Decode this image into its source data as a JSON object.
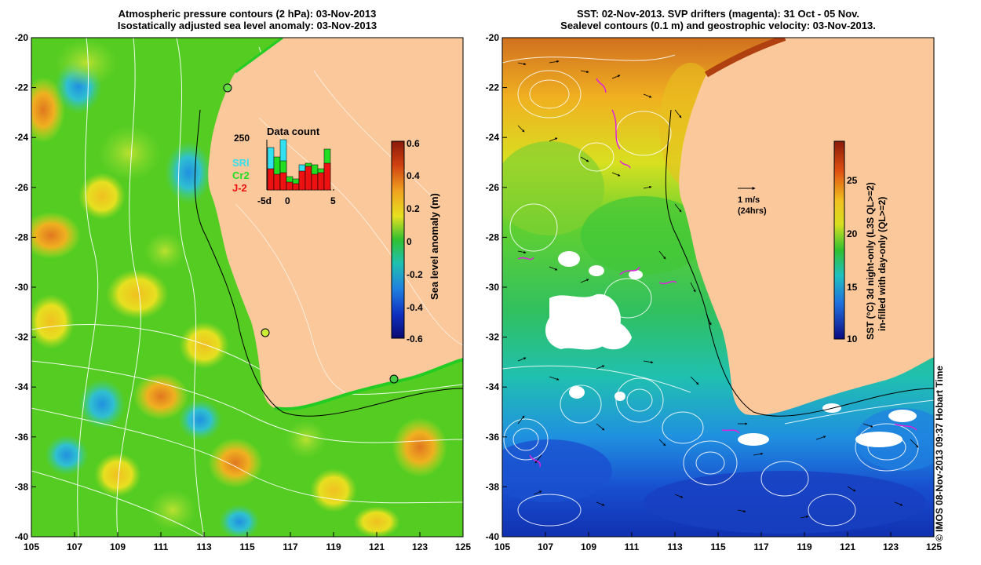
{
  "left_panel": {
    "title_line1": "Atmospheric pressure contours (2 hPa): 03-Nov-2013",
    "title_line2": "Isostatically adjusted sea level anomaly: 03-Nov-2013",
    "colorbar": {
      "label": "Sea level anomaly (m)",
      "ticks": [
        "0.6",
        "0.4",
        "0.2",
        "0",
        "-0.2",
        "-0.4",
        "-0.6"
      ]
    },
    "inset": {
      "title": "Data count",
      "ymax_label": "250",
      "xticks": [
        "-5d",
        "0",
        "5"
      ],
      "legend": [
        {
          "label": "SRl",
          "color": "#33e0f0"
        },
        {
          "label": "Cr2",
          "color": "#22dd22"
        },
        {
          "label": "J-2",
          "color": "#ee1111"
        }
      ]
    }
  },
  "right_panel": {
    "title_line1": "SST: 02-Nov-2013. SVP drifters (magenta): 31 Oct - 05 Nov.",
    "title_line2": "Sealevel contours (0.1 m) and geostrophic velocity: 03-Nov-2013.",
    "scale_arrow_label": "1 m/s",
    "scale_arrow_sublabel": "(24hrs)",
    "colorbar": {
      "label_line1": "SST (°C) 3d night-only (L3S QL>=2)",
      "label_line2": "in-filled with day-only (QL>=2)",
      "ticks": [
        "25",
        "20",
        "15",
        "10"
      ]
    }
  },
  "axes": {
    "x_ticks": [
      "105",
      "107",
      "109",
      "111",
      "113",
      "115",
      "117",
      "119",
      "121",
      "123",
      "125"
    ],
    "y_ticks": [
      "-20",
      "-22",
      "-24",
      "-26",
      "-28",
      "-30",
      "-32",
      "-34",
      "-36",
      "-38",
      "-40"
    ]
  },
  "credit": "© IMOS 08-Nov-2013 09:37 Hobart Time",
  "colors": {
    "land": "#fac89a",
    "ocean_base_left": "#55cc22",
    "frame": "#000000"
  }
}
